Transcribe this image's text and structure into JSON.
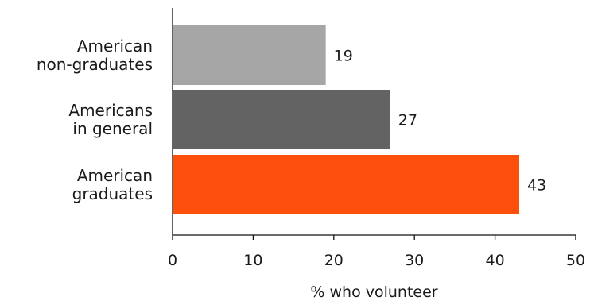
{
  "chart_data": {
    "type": "bar",
    "orientation": "horizontal",
    "categories": [
      [
        "American",
        "non-graduates"
      ],
      [
        "Americans",
        "in general"
      ],
      [
        "American",
        "graduates"
      ]
    ],
    "values": [
      19,
      27,
      43
    ],
    "colors": [
      "#a6a6a6",
      "#636363",
      "#fb4f0b"
    ],
    "xlabel": "% who volunteer",
    "ylabel": "",
    "title": "",
    "xlim": [
      0,
      50
    ],
    "xticks": [
      0,
      10,
      20,
      30,
      40,
      50
    ],
    "grid": false,
    "legend": "none"
  }
}
